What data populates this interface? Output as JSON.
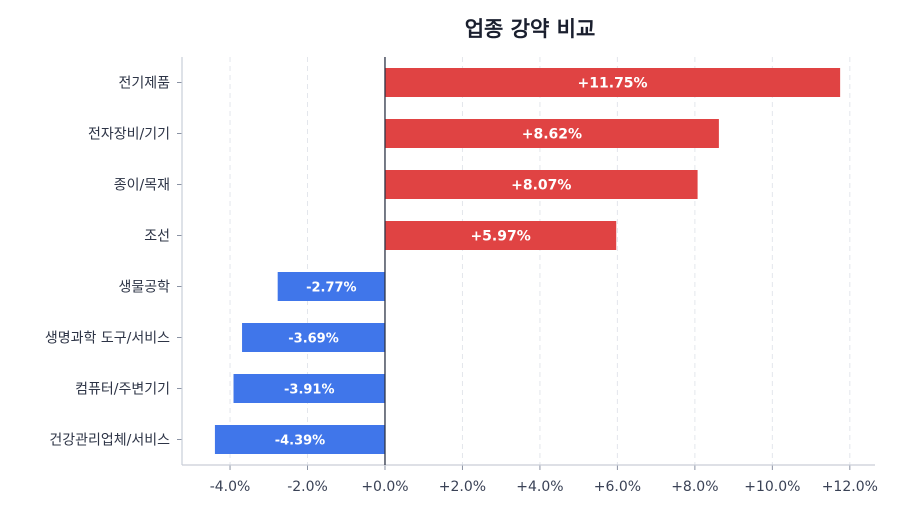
{
  "chart_data": {
    "type": "bar",
    "orientation": "horizontal",
    "title": "업종 강약 비교",
    "xlabel": "",
    "ylabel": "",
    "categories": [
      "전기제품",
      "전자장비/기기",
      "종이/목재",
      "조선",
      "생물공학",
      "생명과학 도구/서비스",
      "컴퓨터/주변기기",
      "건강관리업체/서비스"
    ],
    "values": [
      11.75,
      8.62,
      8.07,
      5.97,
      -2.77,
      -3.69,
      -3.91,
      -4.39
    ],
    "data_labels": [
      "+11.75%",
      "+8.62%",
      "+8.07%",
      "+5.97%",
      "-2.77%",
      "-3.69%",
      "-3.91%",
      "-4.39%"
    ],
    "xlim": [
      -5.24,
      12.65
    ],
    "xticks": [
      -4,
      -2,
      0,
      2,
      4,
      6,
      8,
      10,
      12
    ],
    "xtick_labels": [
      "-4.0%",
      "-2.0%",
      "+0.0%",
      "+2.0%",
      "+4.0%",
      "+6.0%",
      "+8.0%",
      "+10.0%",
      "+12.0%"
    ],
    "grid": "x dashed",
    "colors": {
      "positive": "#e04343",
      "negative": "#4076ea",
      "zero_line": "#2d3446"
    }
  }
}
